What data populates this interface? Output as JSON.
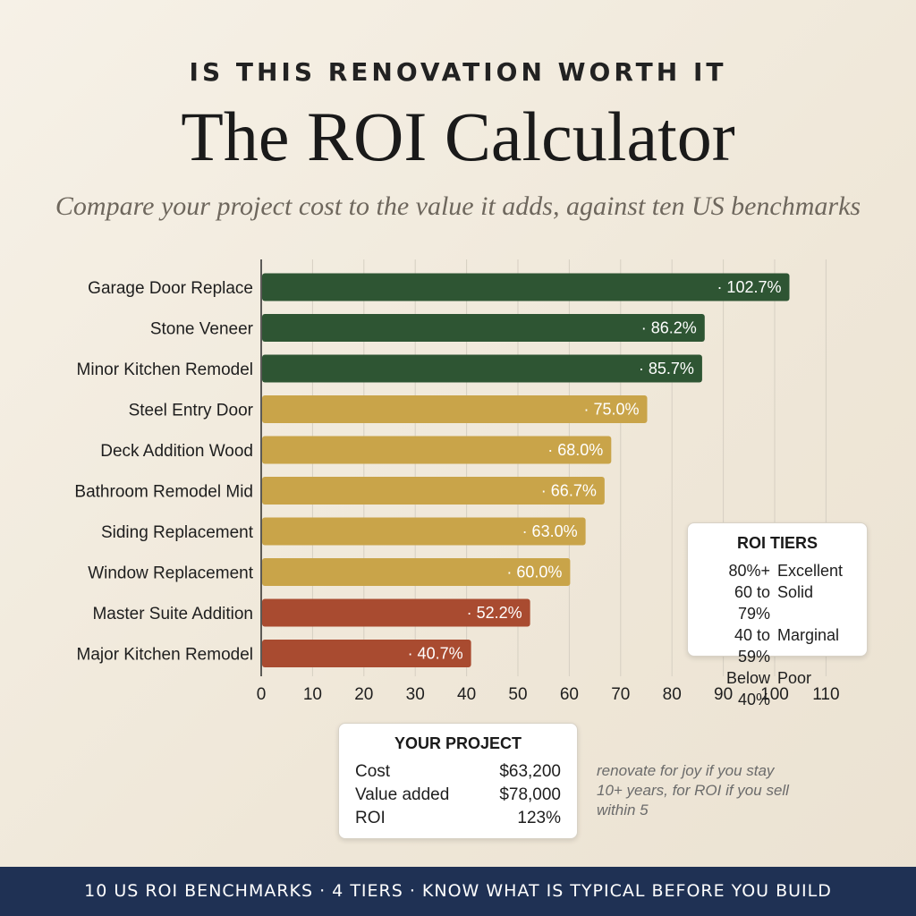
{
  "header": {
    "kicker": "IS THIS RENOVATION WORTH IT",
    "title": "The ROI Calculator",
    "subtitle": "Compare your project cost to the value it adds, against ten US benchmarks"
  },
  "chart_data": {
    "type": "bar",
    "orientation": "horizontal",
    "categories": [
      "Garage Door Replace",
      "Stone Veneer",
      "Minor Kitchen Remodel",
      "Steel Entry Door",
      "Deck Addition Wood",
      "Bathroom Remodel Mid",
      "Siding Replacement",
      "Window Replacement",
      "Master Suite Addition",
      "Major Kitchen Remodel"
    ],
    "values": [
      102.7,
      86.2,
      85.7,
      75.0,
      68.0,
      66.7,
      63.0,
      60.0,
      52.2,
      40.7
    ],
    "value_labels": [
      "· 102.7%",
      "· 86.2%",
      "· 85.7%",
      "· 75.0%",
      "· 68.0%",
      "· 66.7%",
      "· 63.0%",
      "· 60.0%",
      "· 52.2%",
      "· 40.7%"
    ],
    "tiers": [
      "excellent",
      "excellent",
      "excellent",
      "solid",
      "solid",
      "solid",
      "solid",
      "solid",
      "marginal",
      "marginal"
    ],
    "tier_colors": {
      "excellent": "#2e5533",
      "solid": "#c9a449",
      "marginal": "#a94b30"
    },
    "xlim": [
      0,
      110
    ],
    "xticks": [
      0,
      10,
      20,
      30,
      40,
      50,
      60,
      70,
      80,
      90,
      100,
      110
    ],
    "grid": true,
    "xlabel": "",
    "ylabel": ""
  },
  "roi_tiers": {
    "title": "ROI TIERS",
    "rows": [
      {
        "range": "80%+",
        "name": "Excellent"
      },
      {
        "range": "60 to 79%",
        "name": "Solid"
      },
      {
        "range": "40 to 59%",
        "name": "Marginal"
      },
      {
        "range": "Below 40%",
        "name": "Poor"
      }
    ]
  },
  "your_project": {
    "title": "YOUR PROJECT",
    "rows": [
      {
        "label": "Cost",
        "value": "$63,200"
      },
      {
        "label": "Value added",
        "value": "$78,000"
      },
      {
        "label": "ROI",
        "value": "123%"
      }
    ]
  },
  "note": "renovate for joy if you stay 10+ years, for ROI if you sell within 5",
  "footer": "10 US ROI BENCHMARKS · 4 TIERS · KNOW WHAT IS TYPICAL BEFORE YOU BUILD"
}
